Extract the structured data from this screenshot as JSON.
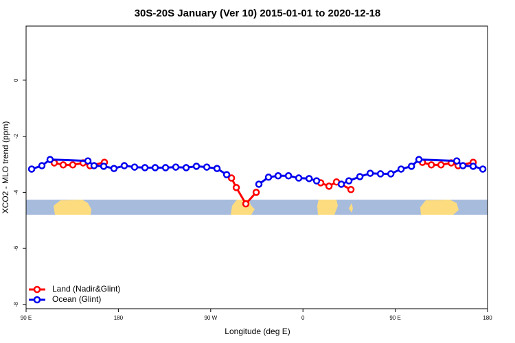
{
  "chart_data": {
    "type": "line",
    "title": "30S-20S January (Ver 10)   2015-01-01 to 2020-12-18",
    "x_label": "Longitude (deg E)",
    "y_label": "XCO2 - MLO trend (ppm)",
    "xlim": [
      90,
      540
    ],
    "xticks": [
      {
        "value": 90,
        "label": "90 E"
      },
      180,
      {
        "value": 270,
        "label": "90 W"
      },
      {
        "value": 360,
        "label": "0"
      },
      {
        "value": 450,
        "label": "90 E"
      },
      {
        "value": 540,
        "label": "180"
      }
    ],
    "ylim": [
      -8.15,
      1.93
    ],
    "yticks": [
      0,
      -2,
      -4,
      -6,
      -8
    ],
    "legend": "bottom-left",
    "series": [
      {
        "name": "Land (Nadir&Glint)",
        "color": "#ff0000",
        "x": [
          117.5,
          126.2,
          135.5,
          145.6,
          152.3,
          166.4,
          null,
          290.3,
          295,
          304.3,
          314.4,
          null,
          377.3,
          385.4,
          392.7,
          406.8,
          null,
          476.5,
          485.2,
          494.6,
          504.6,
          511.3,
          526
        ],
        "values": [
          -2.95,
          -3.02,
          -3.02,
          -2.95,
          -3.05,
          -2.93,
          null,
          -3.49,
          -3.83,
          -4.41,
          -4.0,
          null,
          -3.66,
          -3.78,
          -3.63,
          -3.9,
          null,
          -2.93,
          -3.02,
          -3.02,
          -2.95,
          -3.05,
          -2.93
        ]
      },
      {
        "name": "Ocean (Glint)",
        "color": "#0000ee",
        "x": [
          95.4,
          105.4,
          113.4,
          150.3,
          156.3,
          165.7,
          175.7,
          185.8,
          195.8,
          205.9,
          215.9,
          226,
          236,
          246.1,
          256.1,
          266.2,
          276.2,
          285.6,
          null,
          317,
          326.4,
          335.8,
          345.9,
          355.9,
          366,
          373.3,
          null,
          397.4,
          404.8,
          415.5,
          425.6,
          435.6,
          445.7,
          455.7,
          465.8,
          473.1,
          510,
          516,
          526,
          535.4
        ],
        "values": [
          -3.17,
          -3.05,
          -2.83,
          -2.88,
          -3.05,
          -3.07,
          -3.15,
          -3.05,
          -3.1,
          -3.12,
          -3.12,
          -3.12,
          -3.1,
          -3.12,
          -3.07,
          -3.1,
          -3.15,
          -3.37,
          null,
          -3.71,
          -3.46,
          -3.41,
          -3.41,
          -3.49,
          -3.51,
          -3.59,
          null,
          -3.71,
          -3.59,
          -3.44,
          -3.32,
          -3.34,
          -3.34,
          -3.17,
          -3.07,
          -2.83,
          -2.88,
          -3.05,
          -3.07,
          -3.17
        ]
      }
    ]
  }
}
